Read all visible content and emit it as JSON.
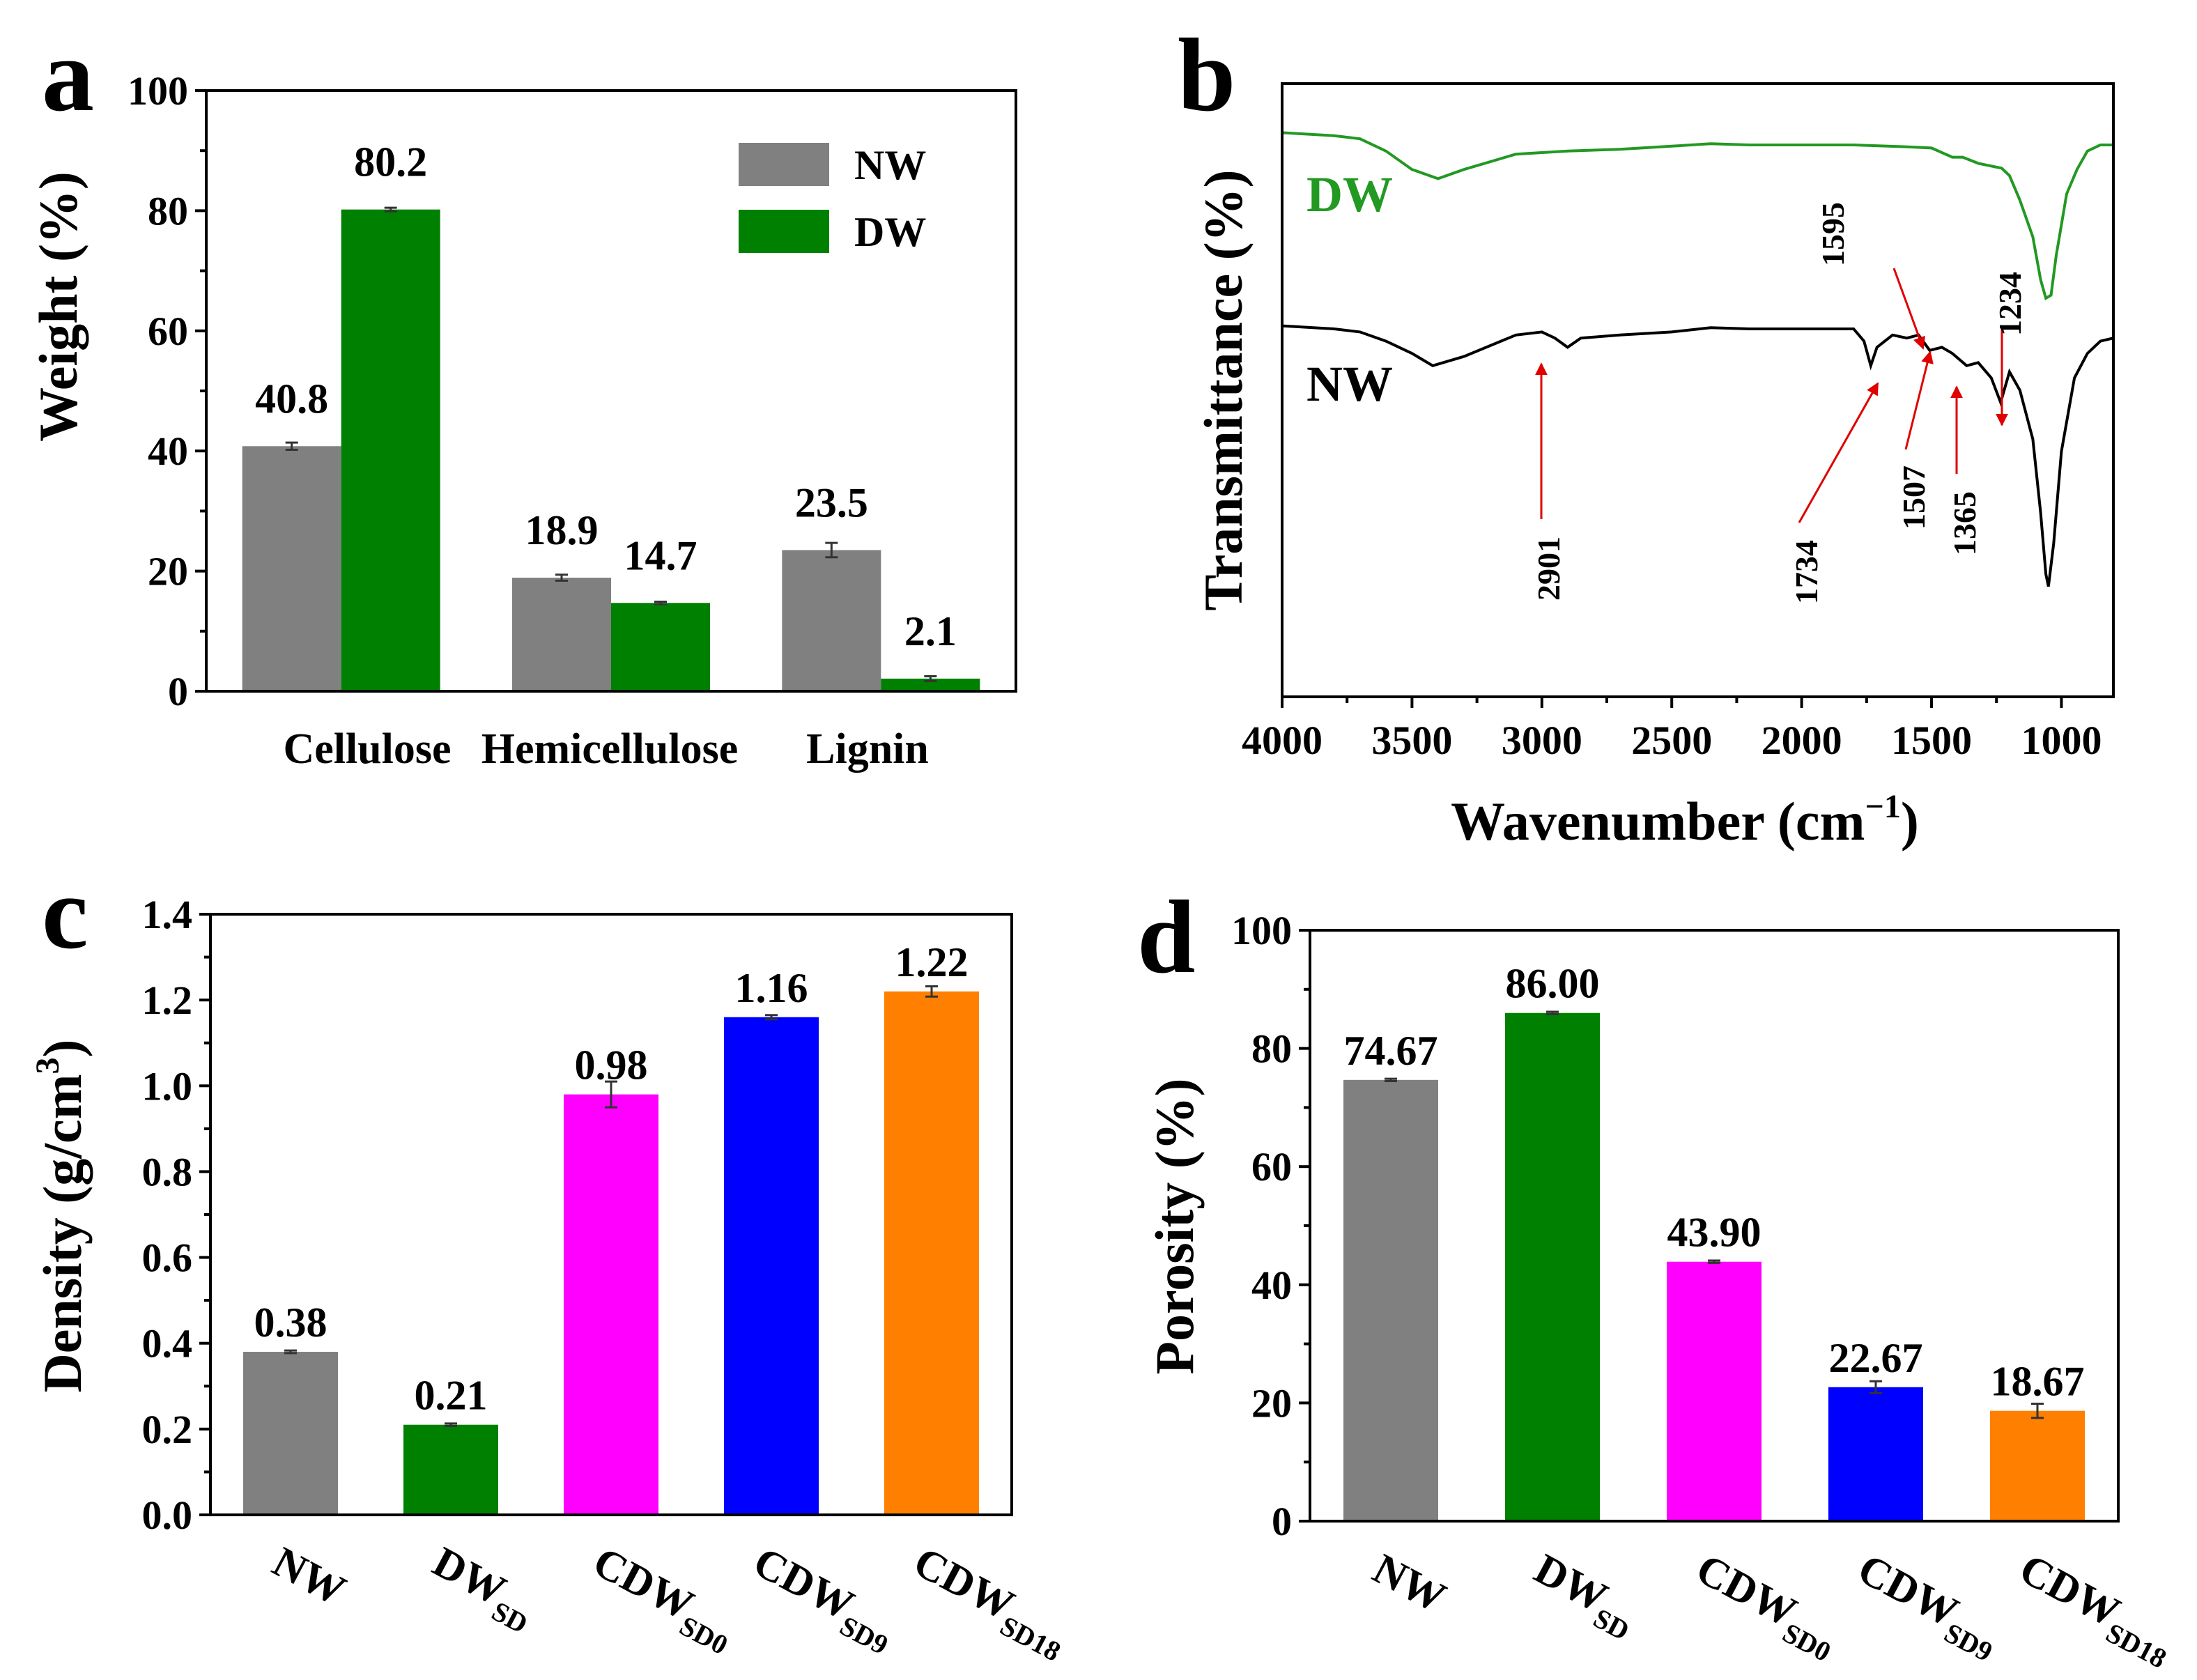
{
  "chart_data": [
    {
      "panel": "a",
      "type": "bar",
      "title": "",
      "xlabel": "",
      "ylabel": "Weight (%)",
      "ylim": [
        0,
        100
      ],
      "yticks": [
        "0",
        "20",
        "40",
        "60",
        "80",
        "100"
      ],
      "categories": [
        "Cellulose",
        "Hemicellulose",
        "Lignin"
      ],
      "series": [
        {
          "name": "NW",
          "color": "#808080",
          "values": [
            40.8,
            18.9,
            23.5
          ],
          "errors": [
            0.6,
            0.5,
            1.2
          ],
          "labels": [
            "40.8",
            "18.9",
            "23.5"
          ]
        },
        {
          "name": "DW",
          "color": "#008000",
          "values": [
            80.2,
            14.7,
            2.1
          ],
          "errors": [
            0.3,
            0.2,
            0.4
          ],
          "labels": [
            "80.2",
            "14.7",
            "2.1"
          ]
        }
      ],
      "legend": {
        "position": "top-right",
        "entries": [
          "NW",
          "DW"
        ]
      }
    },
    {
      "panel": "b",
      "type": "line",
      "title": "",
      "xlabel": "Wavenumber (cm−1)",
      "ylabel": "Transmittance (%)",
      "xlim": [
        4000,
        800
      ],
      "xticks": [
        "4000",
        "3500",
        "3000",
        "2500",
        "2000",
        "1500",
        "1000"
      ],
      "series": [
        {
          "name": "DW",
          "color": "#229922",
          "points": [
            [
              4000,
              0.92
            ],
            [
              3800,
              0.915
            ],
            [
              3700,
              0.91
            ],
            [
              3600,
              0.89
            ],
            [
              3500,
              0.86
            ],
            [
              3400,
              0.845
            ],
            [
              3300,
              0.86
            ],
            [
              3100,
              0.885
            ],
            [
              2900,
              0.89
            ],
            [
              2700,
              0.893
            ],
            [
              2500,
              0.898
            ],
            [
              2350,
              0.902
            ],
            [
              2200,
              0.9
            ],
            [
              2000,
              0.9
            ],
            [
              1800,
              0.9
            ],
            [
              1600,
              0.897
            ],
            [
              1500,
              0.895
            ],
            [
              1420,
              0.88
            ],
            [
              1380,
              0.88
            ],
            [
              1320,
              0.87
            ],
            [
              1230,
              0.862
            ],
            [
              1200,
              0.85
            ],
            [
              1160,
              0.81
            ],
            [
              1110,
              0.75
            ],
            [
              1080,
              0.68
            ],
            [
              1060,
              0.65
            ],
            [
              1040,
              0.655
            ],
            [
              1020,
              0.72
            ],
            [
              980,
              0.82
            ],
            [
              940,
              0.86
            ],
            [
              900,
              0.89
            ],
            [
              850,
              0.9
            ],
            [
              800,
              0.9
            ]
          ]
        },
        {
          "name": "NW",
          "color": "#000000",
          "points": [
            [
              4000,
              0.605
            ],
            [
              3800,
              0.6
            ],
            [
              3700,
              0.595
            ],
            [
              3600,
              0.58
            ],
            [
              3500,
              0.56
            ],
            [
              3420,
              0.54
            ],
            [
              3300,
              0.555
            ],
            [
              3100,
              0.59
            ],
            [
              3000,
              0.595
            ],
            [
              2950,
              0.585
            ],
            [
              2901,
              0.57
            ],
            [
              2850,
              0.585
            ],
            [
              2700,
              0.59
            ],
            [
              2500,
              0.595
            ],
            [
              2350,
              0.602
            ],
            [
              2200,
              0.6
            ],
            [
              2000,
              0.6
            ],
            [
              1800,
              0.6
            ],
            [
              1760,
              0.58
            ],
            [
              1734,
              0.54
            ],
            [
              1710,
              0.57
            ],
            [
              1650,
              0.59
            ],
            [
              1595,
              0.585
            ],
            [
              1550,
              0.59
            ],
            [
              1507,
              0.565
            ],
            [
              1460,
              0.57
            ],
            [
              1420,
              0.56
            ],
            [
              1365,
              0.54
            ],
            [
              1320,
              0.545
            ],
            [
              1270,
              0.52
            ],
            [
              1234,
              0.48
            ],
            [
              1200,
              0.53
            ],
            [
              1160,
              0.5
            ],
            [
              1110,
              0.42
            ],
            [
              1080,
              0.3
            ],
            [
              1060,
              0.2
            ],
            [
              1050,
              0.18
            ],
            [
              1030,
              0.25
            ],
            [
              1000,
              0.4
            ],
            [
              950,
              0.52
            ],
            [
              900,
              0.56
            ],
            [
              850,
              0.58
            ],
            [
              800,
              0.585
            ]
          ]
        }
      ],
      "annotations": [
        {
          "label": "2901",
          "x": 2901
        },
        {
          "label": "1734",
          "x": 1734
        },
        {
          "label": "1595",
          "x": 1595
        },
        {
          "label": "1507",
          "x": 1507
        },
        {
          "label": "1365",
          "x": 1365
        },
        {
          "label": "1234",
          "x": 1234
        }
      ]
    },
    {
      "panel": "c",
      "type": "bar",
      "title": "",
      "xlabel": "",
      "ylabel": "Density (g/cm3)",
      "ylim": [
        0,
        1.4
      ],
      "yticks": [
        "0.0",
        "0.2",
        "0.4",
        "0.6",
        "0.8",
        "1.0",
        "1.2",
        "1.4"
      ],
      "categories": [
        "NW",
        "DWSD",
        "CDWSD0",
        "CDWSD9",
        "CDWSD18"
      ],
      "values": [
        0.38,
        0.21,
        0.98,
        1.16,
        1.22
      ],
      "errors": [
        0.003,
        0.003,
        0.03,
        0.005,
        0.012
      ],
      "labels": [
        "0.38",
        "0.21",
        "0.98",
        "1.16",
        "1.22"
      ],
      "colors": [
        "#808080",
        "#008000",
        "#ff00ff",
        "#0000ff",
        "#ff8000"
      ]
    },
    {
      "panel": "d",
      "type": "bar",
      "title": "",
      "xlabel": "",
      "ylabel": "Porosity (%)",
      "ylim": [
        0,
        100
      ],
      "yticks": [
        "0",
        "20",
        "40",
        "60",
        "80",
        "100"
      ],
      "categories": [
        "NW",
        "DWSD",
        "CDWSD0",
        "CDWSD9",
        "CDWSD18"
      ],
      "values": [
        74.67,
        86.0,
        43.9,
        22.67,
        18.67
      ],
      "errors": [
        0.2,
        0.2,
        0.2,
        1.0,
        1.2
      ],
      "labels": [
        "74.67",
        "86.00",
        "43.90",
        "22.67",
        "18.67"
      ],
      "colors": [
        "#808080",
        "#008000",
        "#ff00ff",
        "#0000ff",
        "#ff8000"
      ]
    }
  ],
  "panels": {
    "a": "a",
    "b": "b",
    "c": "c",
    "d": "d"
  },
  "text": {
    "a_ylabel": "Weight (%)",
    "b_ylabel": "Transmittance (%)",
    "b_xlabel_main": "Wavenumber (cm",
    "b_xlabel_sup": "−1",
    "b_xlabel_close": ")",
    "c_ylabel_main": "Density (g/cm",
    "c_ylabel_sup": "3",
    "c_ylabel_close": ")",
    "d_ylabel": "Porosity (%)",
    "curve_label_dw": "DW",
    "curve_label_nw": "NW"
  },
  "xcats": [
    {
      "main": "NW",
      "sub": ""
    },
    {
      "main": "DW",
      "sub": "SD"
    },
    {
      "main": "CDW",
      "sub": "SD0"
    },
    {
      "main": "CDW",
      "sub": "SD9"
    },
    {
      "main": "CDW",
      "sub": "SD18"
    }
  ]
}
